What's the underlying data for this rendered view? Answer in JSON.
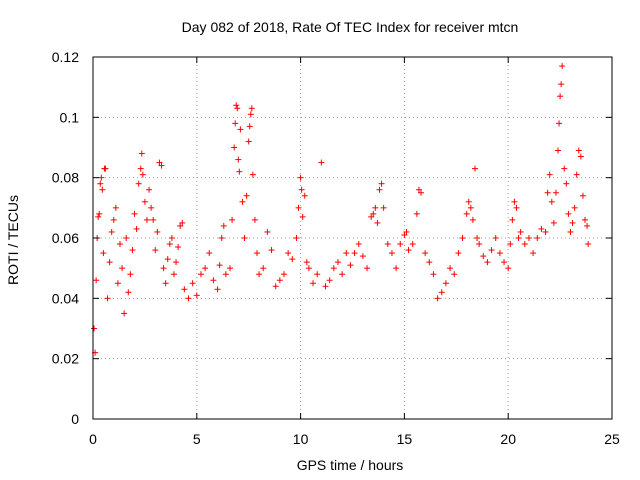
{
  "chart_data": {
    "type": "scatter",
    "title": "Day 082 of 2018, Rate Of TEC Index for receiver mtcn",
    "xlabel": "GPS time / hours",
    "ylabel": "ROTI / TECUs",
    "xlim": [
      0,
      25
    ],
    "ylim": [
      0,
      0.12
    ],
    "x_ticks": [
      0,
      5,
      10,
      15,
      20,
      25
    ],
    "y_ticks": [
      0,
      0.02,
      0.04,
      0.06,
      0.08,
      0.1,
      0.12
    ],
    "x_tick_labels": [
      "0",
      "5",
      "10",
      "15",
      "20",
      "25"
    ],
    "y_tick_labels": [
      "0",
      "0.02",
      "0.04",
      "0.06",
      "0.08",
      "0.1",
      "0.12"
    ],
    "grid": true,
    "marker": "+",
    "series": [
      {
        "name": "ROTI",
        "color": "#ff0000",
        "points": [
          [
            0.05,
            0.03
          ],
          [
            0.1,
            0.022
          ],
          [
            0.15,
            0.046
          ],
          [
            0.2,
            0.06
          ],
          [
            0.25,
            0.067
          ],
          [
            0.3,
            0.068
          ],
          [
            0.35,
            0.078
          ],
          [
            0.4,
            0.08
          ],
          [
            0.45,
            0.076
          ],
          [
            0.5,
            0.055
          ],
          [
            0.55,
            0.083
          ],
          [
            0.6,
            0.083
          ],
          [
            0.7,
            0.04
          ],
          [
            0.8,
            0.052
          ],
          [
            0.9,
            0.062
          ],
          [
            1.0,
            0.066
          ],
          [
            1.1,
            0.07
          ],
          [
            1.2,
            0.045
          ],
          [
            1.3,
            0.058
          ],
          [
            1.4,
            0.05
          ],
          [
            1.5,
            0.035
          ],
          [
            1.6,
            0.06
          ],
          [
            1.7,
            0.042
          ],
          [
            1.8,
            0.048
          ],
          [
            1.9,
            0.056
          ],
          [
            2.0,
            0.068
          ],
          [
            2.1,
            0.063
          ],
          [
            2.2,
            0.078
          ],
          [
            2.3,
            0.083
          ],
          [
            2.35,
            0.088
          ],
          [
            2.4,
            0.081
          ],
          [
            2.5,
            0.072
          ],
          [
            2.6,
            0.066
          ],
          [
            2.7,
            0.076
          ],
          [
            2.8,
            0.07
          ],
          [
            2.9,
            0.066
          ],
          [
            3.0,
            0.056
          ],
          [
            3.1,
            0.062
          ],
          [
            3.2,
            0.085
          ],
          [
            3.3,
            0.084
          ],
          [
            3.4,
            0.05
          ],
          [
            3.5,
            0.045
          ],
          [
            3.6,
            0.053
          ],
          [
            3.7,
            0.058
          ],
          [
            3.8,
            0.06
          ],
          [
            3.9,
            0.048
          ],
          [
            4.0,
            0.052
          ],
          [
            4.1,
            0.057
          ],
          [
            4.2,
            0.064
          ],
          [
            4.3,
            0.065
          ],
          [
            4.4,
            0.043
          ],
          [
            4.6,
            0.04
          ],
          [
            4.8,
            0.045
          ],
          [
            5.0,
            0.041
          ],
          [
            5.2,
            0.048
          ],
          [
            5.4,
            0.05
          ],
          [
            5.6,
            0.055
          ],
          [
            5.8,
            0.046
          ],
          [
            6.0,
            0.043
          ],
          [
            6.1,
            0.051
          ],
          [
            6.2,
            0.06
          ],
          [
            6.3,
            0.064
          ],
          [
            6.4,
            0.048
          ],
          [
            6.6,
            0.05
          ],
          [
            6.7,
            0.066
          ],
          [
            6.8,
            0.09
          ],
          [
            6.85,
            0.098
          ],
          [
            6.9,
            0.104
          ],
          [
            6.95,
            0.103
          ],
          [
            7.0,
            0.086
          ],
          [
            7.05,
            0.082
          ],
          [
            7.1,
            0.096
          ],
          [
            7.2,
            0.072
          ],
          [
            7.3,
            0.06
          ],
          [
            7.4,
            0.074
          ],
          [
            7.5,
            0.092
          ],
          [
            7.55,
            0.097
          ],
          [
            7.6,
            0.101
          ],
          [
            7.65,
            0.103
          ],
          [
            7.7,
            0.081
          ],
          [
            7.8,
            0.066
          ],
          [
            7.9,
            0.055
          ],
          [
            8.0,
            0.048
          ],
          [
            8.2,
            0.05
          ],
          [
            8.4,
            0.062
          ],
          [
            8.6,
            0.056
          ],
          [
            8.8,
            0.044
          ],
          [
            9.0,
            0.046
          ],
          [
            9.2,
            0.048
          ],
          [
            9.4,
            0.055
          ],
          [
            9.6,
            0.053
          ],
          [
            9.8,
            0.06
          ],
          [
            9.9,
            0.07
          ],
          [
            10.0,
            0.08
          ],
          [
            10.05,
            0.076
          ],
          [
            10.1,
            0.067
          ],
          [
            10.2,
            0.074
          ],
          [
            10.3,
            0.052
          ],
          [
            10.4,
            0.05
          ],
          [
            10.6,
            0.045
          ],
          [
            10.8,
            0.048
          ],
          [
            11.0,
            0.085
          ],
          [
            11.2,
            0.044
          ],
          [
            11.4,
            0.046
          ],
          [
            11.6,
            0.05
          ],
          [
            11.8,
            0.052
          ],
          [
            12.0,
            0.048
          ],
          [
            12.2,
            0.055
          ],
          [
            12.4,
            0.051
          ],
          [
            12.6,
            0.055
          ],
          [
            12.8,
            0.058
          ],
          [
            13.0,
            0.054
          ],
          [
            13.2,
            0.05
          ],
          [
            13.4,
            0.067
          ],
          [
            13.5,
            0.068
          ],
          [
            13.6,
            0.07
          ],
          [
            13.7,
            0.065
          ],
          [
            13.8,
            0.076
          ],
          [
            13.9,
            0.078
          ],
          [
            14.0,
            0.07
          ],
          [
            14.2,
            0.058
          ],
          [
            14.4,
            0.055
          ],
          [
            14.6,
            0.05
          ],
          [
            14.8,
            0.058
          ],
          [
            15.0,
            0.061
          ],
          [
            15.1,
            0.062
          ],
          [
            15.2,
            0.056
          ],
          [
            15.4,
            0.058
          ],
          [
            15.6,
            0.068
          ],
          [
            15.7,
            0.076
          ],
          [
            15.8,
            0.075
          ],
          [
            16.0,
            0.055
          ],
          [
            16.2,
            0.052
          ],
          [
            16.4,
            0.048
          ],
          [
            16.6,
            0.04
          ],
          [
            16.8,
            0.042
          ],
          [
            17.0,
            0.045
          ],
          [
            17.2,
            0.05
          ],
          [
            17.4,
            0.048
          ],
          [
            17.6,
            0.055
          ],
          [
            17.8,
            0.06
          ],
          [
            18.0,
            0.068
          ],
          [
            18.1,
            0.072
          ],
          [
            18.2,
            0.07
          ],
          [
            18.3,
            0.066
          ],
          [
            18.4,
            0.083
          ],
          [
            18.5,
            0.06
          ],
          [
            18.6,
            0.058
          ],
          [
            18.8,
            0.054
          ],
          [
            19.0,
            0.052
          ],
          [
            19.2,
            0.056
          ],
          [
            19.4,
            0.06
          ],
          [
            19.6,
            0.055
          ],
          [
            19.8,
            0.052
          ],
          [
            20.0,
            0.05
          ],
          [
            20.1,
            0.058
          ],
          [
            20.2,
            0.066
          ],
          [
            20.3,
            0.072
          ],
          [
            20.4,
            0.07
          ],
          [
            20.5,
            0.06
          ],
          [
            20.6,
            0.062
          ],
          [
            20.8,
            0.058
          ],
          [
            21.0,
            0.06
          ],
          [
            21.2,
            0.055
          ],
          [
            21.4,
            0.06
          ],
          [
            21.6,
            0.063
          ],
          [
            21.8,
            0.062
          ],
          [
            21.9,
            0.075
          ],
          [
            22.0,
            0.081
          ],
          [
            22.1,
            0.072
          ],
          [
            22.2,
            0.065
          ],
          [
            22.3,
            0.075
          ],
          [
            22.4,
            0.089
          ],
          [
            22.45,
            0.098
          ],
          [
            22.5,
            0.107
          ],
          [
            22.55,
            0.111
          ],
          [
            22.6,
            0.117
          ],
          [
            22.7,
            0.083
          ],
          [
            22.8,
            0.078
          ],
          [
            22.9,
            0.068
          ],
          [
            23.0,
            0.062
          ],
          [
            23.1,
            0.065
          ],
          [
            23.2,
            0.07
          ],
          [
            23.3,
            0.081
          ],
          [
            23.4,
            0.089
          ],
          [
            23.5,
            0.087
          ],
          [
            23.6,
            0.074
          ],
          [
            23.7,
            0.066
          ],
          [
            23.8,
            0.064
          ],
          [
            23.85,
            0.058
          ]
        ]
      }
    ]
  }
}
